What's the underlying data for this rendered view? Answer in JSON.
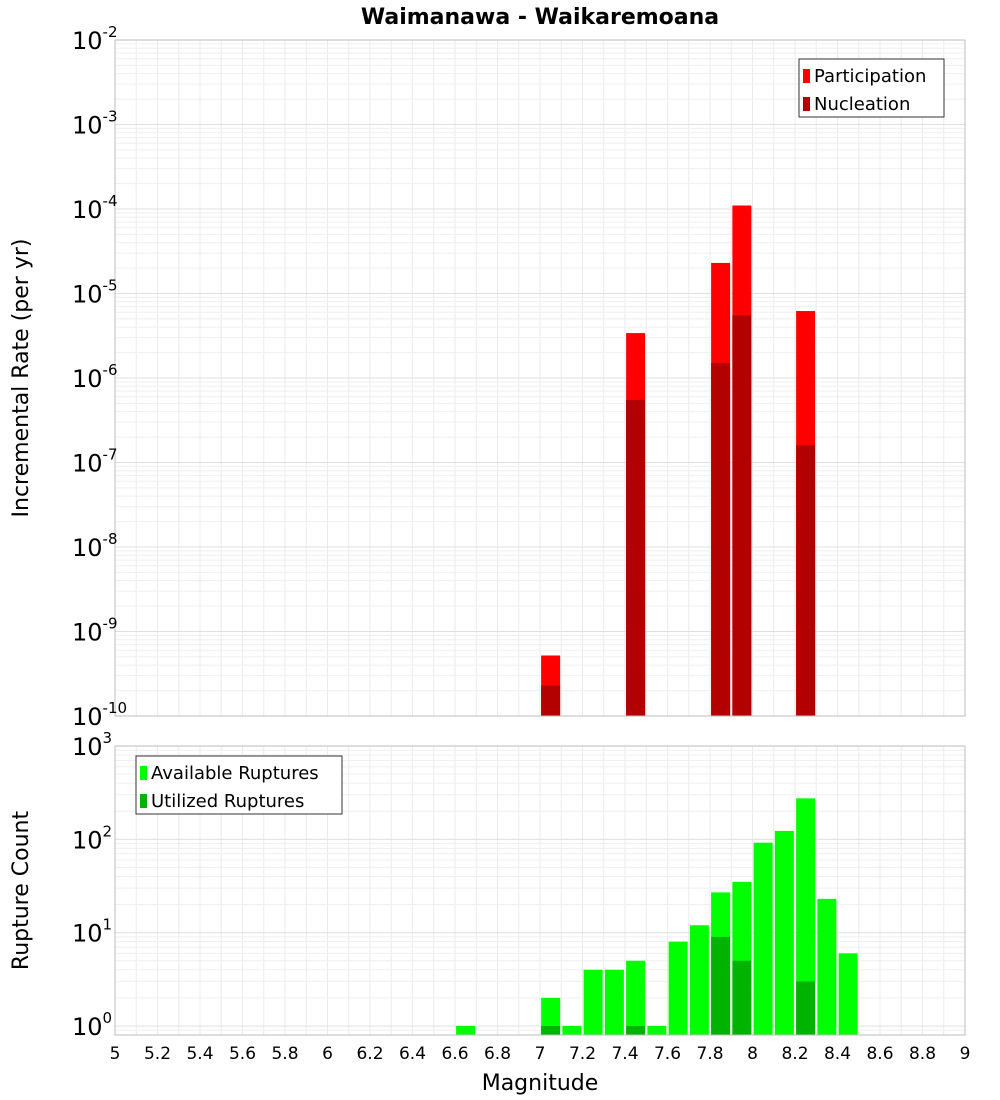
{
  "chart_data": [
    {
      "type": "bar",
      "title": "Waimanawa - Waikaremoana",
      "xlabel": "",
      "ylabel": "Incremental Rate (per yr)",
      "yscale": "log",
      "xlim": [
        5,
        9
      ],
      "ylim": [
        1e-10,
        0.01
      ],
      "y_tick_labels": [
        {
          "base": "10",
          "exp": "-2",
          "value": 0.01
        },
        {
          "base": "10",
          "exp": "-3",
          "value": 0.001
        },
        {
          "base": "10",
          "exp": "-4",
          "value": 0.0001
        },
        {
          "base": "10",
          "exp": "-5",
          "value": 1e-05
        },
        {
          "base": "10",
          "exp": "-6",
          "value": 1e-06
        },
        {
          "base": "10",
          "exp": "-7",
          "value": 1e-07
        },
        {
          "base": "10",
          "exp": "-8",
          "value": 1e-08
        },
        {
          "base": "10",
          "exp": "-9",
          "value": 1e-09
        },
        {
          "base": "10",
          "exp": "-10",
          "value": 1e-10
        }
      ],
      "grid": true,
      "legend_position": "top-right",
      "series": [
        {
          "name": "Participation",
          "color": "#ff0000",
          "points": [
            {
              "x": 7.05,
              "y": 5.2e-10
            },
            {
              "x": 7.45,
              "y": 3.4e-06
            },
            {
              "x": 7.85,
              "y": 2.3e-05
            },
            {
              "x": 7.95,
              "y": 0.00011
            },
            {
              "x": 8.25,
              "y": 6.2e-06
            }
          ]
        },
        {
          "name": "Nucleation",
          "color": "#b30000",
          "points": [
            {
              "x": 7.05,
              "y": 2.3e-10
            },
            {
              "x": 7.45,
              "y": 5.5e-07
            },
            {
              "x": 7.85,
              "y": 1.5e-06
            },
            {
              "x": 7.95,
              "y": 5.5e-06
            },
            {
              "x": 8.25,
              "y": 1.6e-07
            }
          ]
        }
      ]
    },
    {
      "type": "bar",
      "title": "",
      "xlabel": "Magnitude",
      "ylabel": "Rupture Count",
      "yscale": "log",
      "xlim": [
        5,
        9
      ],
      "ylim": [
        0.8,
        1000
      ],
      "y_tick_labels": [
        {
          "base": "10",
          "exp": "3",
          "value": 1000
        },
        {
          "base": "10",
          "exp": "2",
          "value": 100
        },
        {
          "base": "10",
          "exp": "1",
          "value": 10
        },
        {
          "base": "10",
          "exp": "0",
          "value": 1
        }
      ],
      "x_tick_labels": [
        "5",
        "5.2",
        "5.4",
        "5.6",
        "5.8",
        "6",
        "6.2",
        "6.4",
        "6.6",
        "6.8",
        "7",
        "7.2",
        "7.4",
        "7.6",
        "7.8",
        "8",
        "8.2",
        "8.4",
        "8.6",
        "8.8",
        "9"
      ],
      "grid": true,
      "legend_position": "top-left",
      "series": [
        {
          "name": "Available Ruptures",
          "color": "#00ff00",
          "points": [
            {
              "x": 6.65,
              "y": 1
            },
            {
              "x": 7.05,
              "y": 2
            },
            {
              "x": 7.15,
              "y": 1
            },
            {
              "x": 7.25,
              "y": 4
            },
            {
              "x": 7.35,
              "y": 4
            },
            {
              "x": 7.45,
              "y": 5
            },
            {
              "x": 7.55,
              "y": 1
            },
            {
              "x": 7.65,
              "y": 8
            },
            {
              "x": 7.75,
              "y": 12
            },
            {
              "x": 7.85,
              "y": 27
            },
            {
              "x": 7.95,
              "y": 35
            },
            {
              "x": 8.05,
              "y": 92
            },
            {
              "x": 8.15,
              "y": 123
            },
            {
              "x": 8.25,
              "y": 275
            },
            {
              "x": 8.35,
              "y": 23
            },
            {
              "x": 8.45,
              "y": 6
            }
          ]
        },
        {
          "name": "Utilized Ruptures",
          "color": "#00b300",
          "points": [
            {
              "x": 7.05,
              "y": 1
            },
            {
              "x": 7.45,
              "y": 1
            },
            {
              "x": 7.85,
              "y": 9
            },
            {
              "x": 7.95,
              "y": 5
            },
            {
              "x": 8.25,
              "y": 3
            }
          ]
        }
      ]
    }
  ]
}
